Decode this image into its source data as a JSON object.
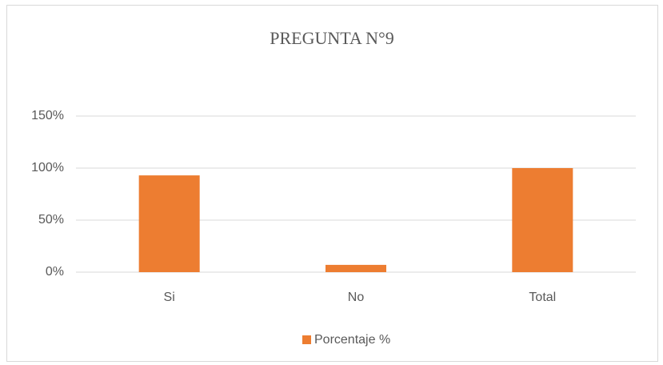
{
  "chart_data": {
    "type": "bar",
    "title": "PREGUNTA N°9",
    "categories": [
      "Si",
      "No",
      "Total"
    ],
    "series": [
      {
        "name": "Porcentaje %",
        "color": "#ed7d31",
        "values": [
          93,
          7,
          100
        ]
      }
    ],
    "ylim": [
      0,
      150
    ],
    "yticks": [
      {
        "value": 0,
        "label": "0%"
      },
      {
        "value": 50,
        "label": "50%"
      },
      {
        "value": 100,
        "label": "100%"
      },
      {
        "value": 150,
        "label": "150%"
      }
    ],
    "grid": true,
    "legend": "bottom"
  }
}
